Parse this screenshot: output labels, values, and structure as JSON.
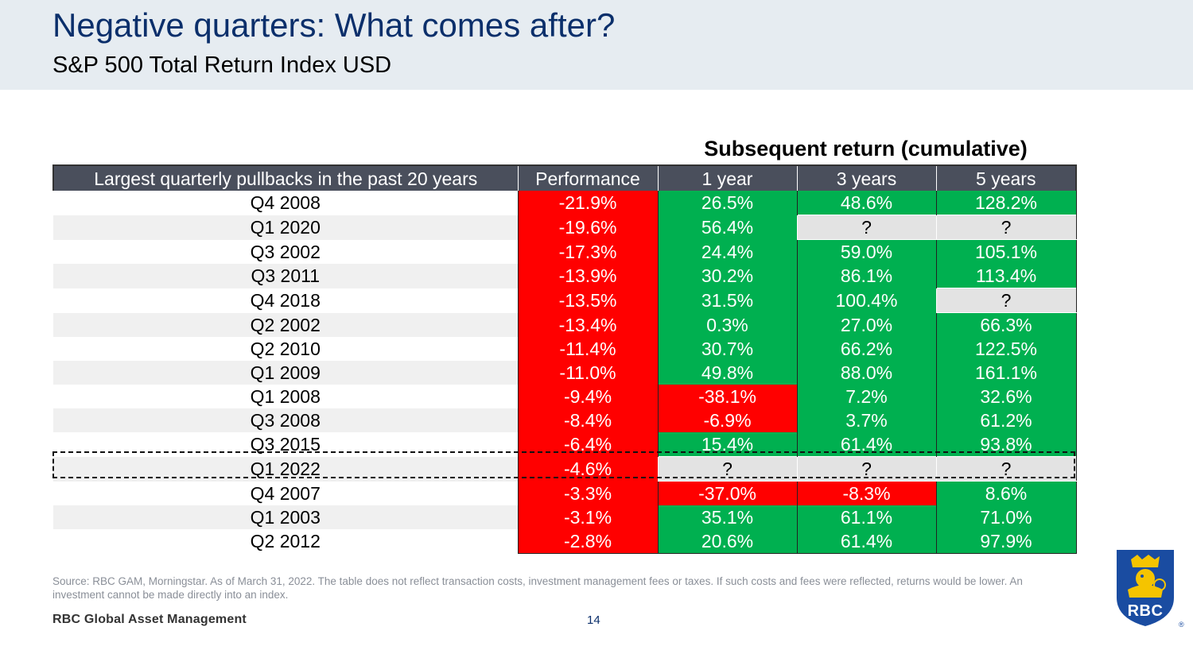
{
  "header": {
    "title": "Negative quarters: What comes after?",
    "subtitle": "S&P 500 Total Return Index USD"
  },
  "table": {
    "group_header": "Subsequent return (cumulative)",
    "columns": [
      "Largest quarterly pullbacks in the past 20 years",
      "Performance",
      "1 year",
      "3 years",
      "5 years"
    ],
    "rows": [
      {
        "quarter": "Q4 2008",
        "performance": "-21.9%",
        "y1": "26.5%",
        "y3": "48.6%",
        "y5": "128.2%"
      },
      {
        "quarter": "Q1 2020",
        "performance": "-19.6%",
        "y1": "56.4%",
        "y3": "?",
        "y5": "?"
      },
      {
        "quarter": "Q3 2002",
        "performance": "-17.3%",
        "y1": "24.4%",
        "y3": "59.0%",
        "y5": "105.1%"
      },
      {
        "quarter": "Q3 2011",
        "performance": "-13.9%",
        "y1": "30.2%",
        "y3": "86.1%",
        "y5": "113.4%"
      },
      {
        "quarter": "Q4 2018",
        "performance": "-13.5%",
        "y1": "31.5%",
        "y3": "100.4%",
        "y5": "?"
      },
      {
        "quarter": "Q2 2002",
        "performance": "-13.4%",
        "y1": "0.3%",
        "y3": "27.0%",
        "y5": "66.3%"
      },
      {
        "quarter": "Q2 2010",
        "performance": "-11.4%",
        "y1": "30.7%",
        "y3": "66.2%",
        "y5": "122.5%"
      },
      {
        "quarter": "Q1 2009",
        "performance": "-11.0%",
        "y1": "49.8%",
        "y3": "88.0%",
        "y5": "161.1%"
      },
      {
        "quarter": "Q1 2008",
        "performance": "-9.4%",
        "y1": "-38.1%",
        "y3": "7.2%",
        "y5": "32.6%"
      },
      {
        "quarter": "Q3 2008",
        "performance": "-8.4%",
        "y1": "-6.9%",
        "y3": "3.7%",
        "y5": "61.2%"
      },
      {
        "quarter": "Q3 2015",
        "performance": "-6.4%",
        "y1": "15.4%",
        "y3": "61.4%",
        "y5": "93.8%"
      },
      {
        "quarter": "Q1 2022",
        "performance": "-4.6%",
        "y1": "?",
        "y3": "?",
        "y5": "?"
      },
      {
        "quarter": "Q4 2007",
        "performance": "-3.3%",
        "y1": "-37.0%",
        "y3": "-8.3%",
        "y5": "8.6%"
      },
      {
        "quarter": "Q1 2003",
        "performance": "-3.1%",
        "y1": "35.1%",
        "y3": "61.1%",
        "y5": "71.0%"
      },
      {
        "quarter": "Q2 2012",
        "performance": "-2.8%",
        "y1": "20.6%",
        "y3": "61.4%",
        "y5": "97.9%"
      }
    ],
    "colors": {
      "negative": "#ff0000",
      "positive": "#00b050",
      "unknown": "#e3e3e3"
    }
  },
  "footer": {
    "source": "Source: RBC GAM, Morningstar. As of March 31, 2022. The table does not reflect transaction costs, investment management fees or taxes. If such costs and fees were reflected, returns would be lower. An investment cannot be made directly into an index.",
    "company": "RBC Global Asset Management",
    "page_number": "14",
    "logo_text": "RBC",
    "registered_mark": "®"
  }
}
